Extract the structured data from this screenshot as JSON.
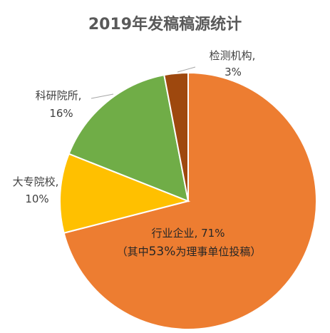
{
  "chart_data": {
    "type": "pie",
    "title": "2019年发稿稿源统计",
    "slices": [
      {
        "label": "行业企业",
        "value": 71,
        "value_text": "71%",
        "color": "#ED7D31",
        "note": {
          "open": "（其中",
          "pct": "53%",
          "rest": "为理事单位投稿）"
        }
      },
      {
        "label": "大专院校",
        "value": 10,
        "value_text": "10%",
        "color": "#FFC000"
      },
      {
        "label": "科研院所",
        "value": 16,
        "value_text": "16%",
        "color": "#70AD47"
      },
      {
        "label": "检测机构",
        "value": 3,
        "value_text": "3%",
        "color": "#9E480E"
      }
    ],
    "start_angle_deg": 0,
    "direction": "clockwise",
    "legend": "none"
  }
}
